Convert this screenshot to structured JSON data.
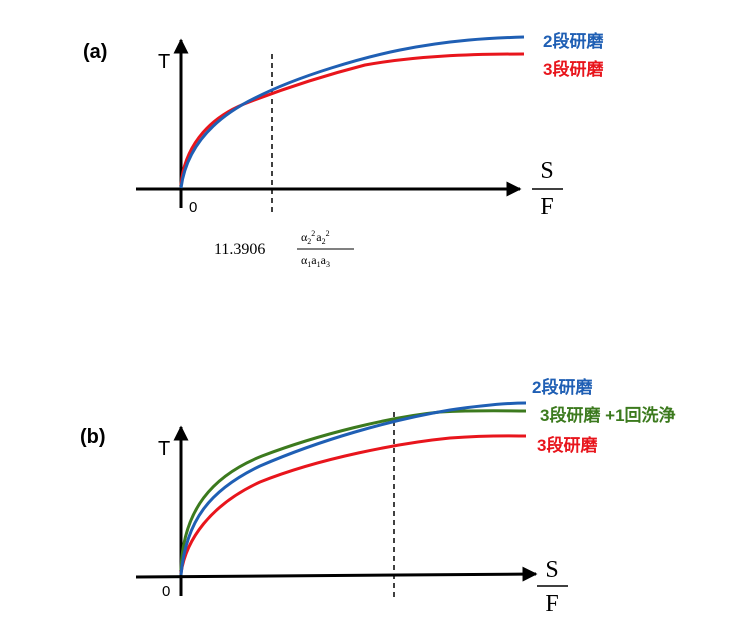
{
  "panel_a": {
    "label": "(a)",
    "y_axis_label": "T",
    "origin_label": "0",
    "x_axis_label": {
      "numerator": "S",
      "denominator": "F"
    },
    "marker_coefficient": "11.3906",
    "marker_fraction": {
      "numerator": [
        {
          "t": "α",
          "sub": "2",
          "sup": "2"
        },
        {
          "t": "a",
          "sub": "2",
          "sup": "2"
        }
      ],
      "denominator": [
        {
          "t": "α",
          "sub": "1"
        },
        {
          "t": "a",
          "sub": "1"
        },
        {
          "t": "a",
          "sub": "3"
        }
      ]
    },
    "legend": [
      {
        "text": "2段研磨",
        "color": "#1f5fb4"
      },
      {
        "text": "3段研磨",
        "color": "#e8151c"
      }
    ]
  },
  "panel_b": {
    "label": "(b)",
    "y_axis_label": "T",
    "origin_label": "0",
    "x_axis_label": {
      "numerator": "S",
      "denominator": "F"
    },
    "legend": [
      {
        "text": "2段研磨",
        "color": "#1f5fb4"
      },
      {
        "text": "3段研磨 +1回洗浄",
        "color": "#3c7a1e"
      },
      {
        "text": "3段研磨",
        "color": "#e8151c"
      }
    ]
  },
  "colors": {
    "axis": "#000000",
    "two_stage": "#1f5fb4",
    "three_stage": "#e8151c",
    "three_stage_wash": "#3c7a1e"
  }
}
